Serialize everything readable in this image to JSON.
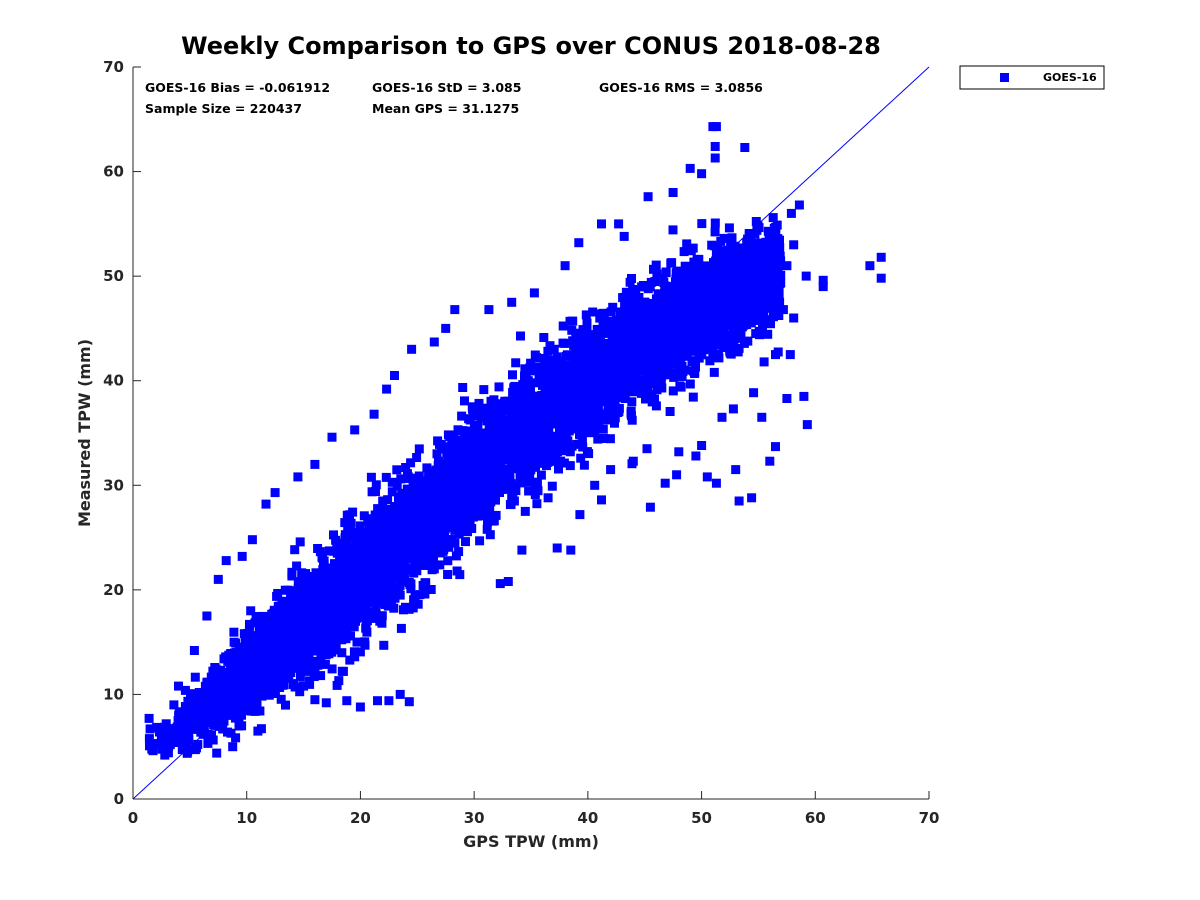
{
  "chart_data": {
    "type": "scatter",
    "title": "Weekly Comparison to GPS over CONUS 2018-08-28",
    "xlabel": "GPS TPW (mm)",
    "ylabel": "Measured TPW (mm)",
    "xlim": [
      0,
      70
    ],
    "ylim": [
      0,
      70
    ],
    "xticks": [
      "0",
      "10",
      "20",
      "30",
      "40",
      "50",
      "60",
      "70"
    ],
    "yticks": [
      "0",
      "10",
      "20",
      "30",
      "40",
      "50",
      "60",
      "70"
    ],
    "grid": false,
    "legend_position": "outside top-right",
    "reference_line": {
      "name": "1:1 line",
      "from": [
        0,
        0
      ],
      "to": [
        70,
        70
      ],
      "color": "#0000ff"
    },
    "stats": [
      {
        "label": "GOES-16 Bias = -0.061912"
      },
      {
        "label": "GOES-16 StD = 3.085"
      },
      {
        "label": "GOES-16 RMS = 3.0856"
      },
      {
        "label": "Sample Size = 220437"
      },
      {
        "label": "Mean GPS = 31.1275"
      }
    ],
    "series": [
      {
        "name": "GOES-16",
        "color": "#0000ff",
        "marker": "square",
        "sample_size": 220437,
        "density_trend": [
          {
            "x": 3,
            "y": 5.5,
            "spread": 1.5
          },
          {
            "x": 10,
            "y": 12,
            "spread": 3.5
          },
          {
            "x": 20,
            "y": 21,
            "spread": 5
          },
          {
            "x": 30,
            "y": 31,
            "spread": 5
          },
          {
            "x": 40,
            "y": 40,
            "spread": 5
          },
          {
            "x": 50,
            "y": 47,
            "spread": 5
          },
          {
            "x": 56,
            "y": 50,
            "spread": 4
          }
        ],
        "outliers": [
          [
            51.3,
            64.3
          ],
          [
            51.0,
            64.3
          ],
          [
            51.2,
            62.4
          ],
          [
            53.8,
            62.3
          ],
          [
            51.2,
            61.3
          ],
          [
            49.0,
            60.3
          ],
          [
            50.0,
            59.8
          ],
          [
            45.3,
            57.6
          ],
          [
            47.5,
            58.0
          ],
          [
            58.6,
            56.8
          ],
          [
            56.3,
            55.6
          ],
          [
            57.9,
            56.0
          ],
          [
            41.2,
            55.0
          ],
          [
            42.7,
            55.0
          ],
          [
            43.2,
            53.8
          ],
          [
            58.1,
            53.0
          ],
          [
            39.2,
            53.2
          ],
          [
            57.5,
            51.0
          ],
          [
            59.2,
            50.0
          ],
          [
            64.8,
            51.0
          ],
          [
            65.8,
            51.8
          ],
          [
            65.8,
            49.8
          ],
          [
            60.7,
            49.0
          ],
          [
            60.7,
            49.6
          ],
          [
            58.1,
            46.0
          ],
          [
            57.2,
            46.8
          ],
          [
            56.3,
            47.6
          ],
          [
            38.0,
            51.0
          ],
          [
            35.3,
            48.4
          ],
          [
            33.3,
            47.5
          ],
          [
            31.3,
            46.8
          ],
          [
            28.3,
            46.8
          ],
          [
            27.5,
            45.0
          ],
          [
            26.5,
            43.7
          ],
          [
            24.5,
            43.0
          ],
          [
            23.0,
            40.5
          ],
          [
            22.3,
            39.2
          ],
          [
            21.2,
            36.8
          ],
          [
            19.5,
            35.3
          ],
          [
            17.5,
            34.6
          ],
          [
            16.0,
            32.0
          ],
          [
            14.5,
            30.8
          ],
          [
            12.5,
            29.3
          ],
          [
            11.7,
            28.2
          ],
          [
            10.5,
            24.8
          ],
          [
            9.6,
            23.2
          ],
          [
            8.2,
            22.8
          ],
          [
            7.5,
            21.0
          ],
          [
            6.5,
            17.5
          ],
          [
            5.4,
            14.2
          ],
          [
            4.0,
            10.8
          ],
          [
            3.6,
            9.0
          ],
          [
            1.5,
            6.7
          ],
          [
            2.8,
            4.2
          ],
          [
            59.3,
            35.8
          ],
          [
            56.5,
            33.7
          ],
          [
            56.0,
            32.3
          ],
          [
            54.4,
            28.8
          ],
          [
            53.3,
            28.5
          ],
          [
            51.3,
            30.2
          ],
          [
            50.5,
            30.8
          ],
          [
            53.0,
            31.5
          ],
          [
            45.5,
            27.9
          ],
          [
            47.8,
            31.0
          ],
          [
            46.8,
            30.2
          ],
          [
            49.5,
            32.8
          ],
          [
            57.5,
            38.3
          ],
          [
            59.0,
            38.5
          ],
          [
            55.3,
            36.5
          ],
          [
            52.8,
            37.3
          ],
          [
            51.8,
            36.5
          ],
          [
            56.5,
            42.5
          ],
          [
            57.8,
            42.5
          ],
          [
            55.5,
            41.8
          ],
          [
            38.5,
            23.8
          ],
          [
            39.3,
            27.2
          ],
          [
            37.3,
            24.0
          ],
          [
            34.2,
            23.8
          ],
          [
            33.0,
            20.8
          ],
          [
            32.3,
            20.6
          ],
          [
            28.5,
            21.8
          ],
          [
            26.5,
            22.0
          ],
          [
            24.3,
            20.7
          ],
          [
            23.5,
            19.5
          ],
          [
            22.5,
            19.0
          ],
          [
            21.7,
            17.0
          ],
          [
            20.5,
            16.5
          ],
          [
            19.7,
            15.0
          ],
          [
            19.5,
            13.6
          ],
          [
            18.5,
            12.2
          ],
          [
            16.5,
            11.8
          ],
          [
            15.0,
            10.8
          ],
          [
            16.0,
            9.5
          ],
          [
            17.0,
            9.2
          ],
          [
            18.8,
            9.4
          ],
          [
            22.5,
            9.4
          ],
          [
            21.5,
            9.4
          ],
          [
            24.3,
            9.3
          ],
          [
            23.5,
            10.0
          ],
          [
            20.0,
            8.8
          ],
          [
            36.5,
            28.8
          ],
          [
            34.5,
            27.5
          ],
          [
            41.2,
            28.6
          ],
          [
            42.0,
            31.5
          ],
          [
            44.0,
            32.3
          ],
          [
            48.0,
            33.2
          ],
          [
            50.0,
            33.8
          ],
          [
            45.2,
            33.5
          ]
        ]
      }
    ]
  }
}
